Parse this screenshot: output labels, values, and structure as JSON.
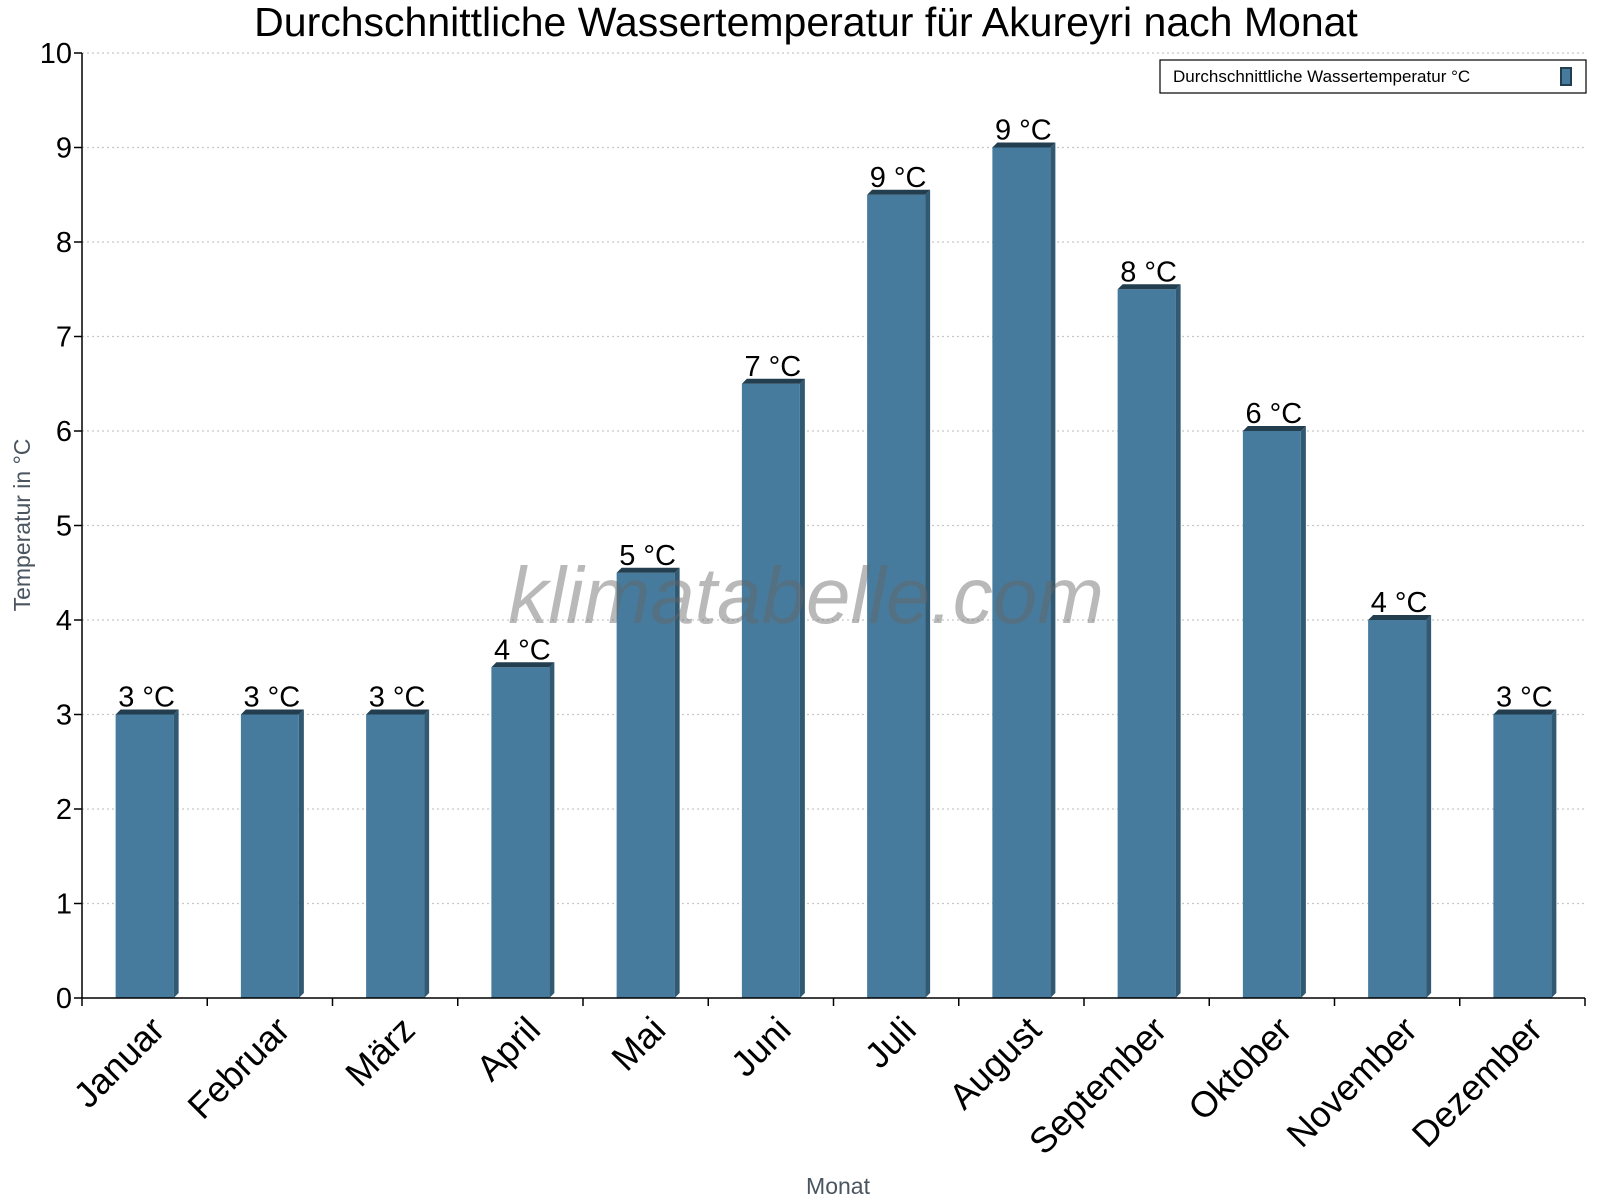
{
  "chart_data": {
    "type": "bar",
    "title": "Durchschnittliche Wassertemperatur für Akureyri nach Monat",
    "xlabel": "Monat",
    "ylabel": "Temperatur in °C",
    "ylim": [
      0,
      10
    ],
    "yticks": [
      0,
      1,
      2,
      3,
      4,
      5,
      6,
      7,
      8,
      9,
      10
    ],
    "grid": true,
    "legend_position": "top-right",
    "categories": [
      "Januar",
      "Februar",
      "März",
      "April",
      "Mai",
      "Juni",
      "Juli",
      "August",
      "September",
      "Oktober",
      "November",
      "Dezember"
    ],
    "series": [
      {
        "name": "Durchschnittliche Wassertemperatur °C",
        "color": "#467b9e",
        "values": [
          3.0,
          3.0,
          3.0,
          3.5,
          4.5,
          6.5,
          8.5,
          9.0,
          7.5,
          6.0,
          4.0,
          3.0
        ],
        "labels": [
          "3 °C",
          "3 °C",
          "3 °C",
          "4 °C",
          "5 °C",
          "7 °C",
          "9 °C",
          "9 °C",
          "8 °C",
          "6 °C",
          "4 °C",
          "3 °C"
        ]
      }
    ],
    "watermark": "klimatabelle.com"
  }
}
